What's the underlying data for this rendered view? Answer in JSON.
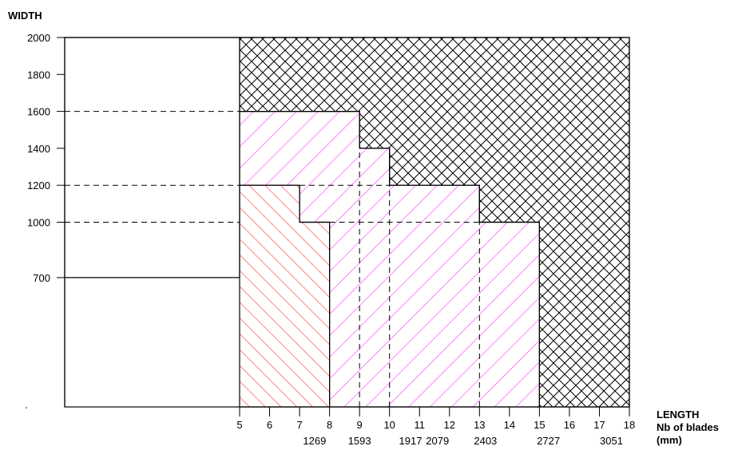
{
  "chart_data": {
    "type": "area",
    "ylabel": "WIDTH",
    "xlabel_lines": [
      "LENGTH",
      "Nb of blades",
      "(mm)"
    ],
    "x_range": [
      5,
      18
    ],
    "y_range": [
      0,
      2000
    ],
    "y_ticks": [
      "2000",
      "1800",
      "1600",
      "1400",
      "1200",
      "1000",
      "700"
    ],
    "y_tick_values": [
      2000,
      1800,
      1600,
      1400,
      1200,
      1000,
      700
    ],
    "x_ticks": [
      "5",
      "6",
      "7",
      "8",
      "9",
      "10",
      "11",
      "12",
      "13",
      "14",
      "15",
      "16",
      "17",
      "18"
    ],
    "x_tick_values": [
      5,
      6,
      7,
      8,
      9,
      10,
      11,
      12,
      13,
      14,
      15,
      16,
      17,
      18
    ],
    "mm_ticks": [
      {
        "label": "1269",
        "at": 7.5
      },
      {
        "label": "1593",
        "at": 9.0
      },
      {
        "label": "1917",
        "at": 10.7
      },
      {
        "label": "2079",
        "at": 11.6
      },
      {
        "label": "2403",
        "at": 13.2
      },
      {
        "label": "2727",
        "at": 15.3
      },
      {
        "label": "3051",
        "at": 17.4
      }
    ],
    "regions": [
      {
        "pattern": "blank",
        "outline": [
          [
            0,
            0
          ],
          [
            0,
            2000
          ],
          [
            5,
            2000
          ],
          [
            5,
            700
          ],
          [
            0,
            700
          ]
        ]
      },
      {
        "pattern": "cross-hatch",
        "color": "#000000",
        "outline": [
          [
            5,
            2000
          ],
          [
            18,
            2000
          ],
          [
            18,
            0
          ],
          [
            15,
            0
          ],
          [
            15,
            1000
          ],
          [
            13,
            1000
          ],
          [
            13,
            1200
          ],
          [
            10,
            1200
          ],
          [
            10,
            1400
          ],
          [
            9,
            1400
          ],
          [
            9,
            1600
          ],
          [
            5,
            1600
          ]
        ]
      },
      {
        "pattern": "diagonal-down",
        "color": "#ff33ff",
        "outline": [
          [
            5,
            1600
          ],
          [
            9,
            1600
          ],
          [
            9,
            1400
          ],
          [
            10,
            1400
          ],
          [
            10,
            1200
          ],
          [
            13,
            1200
          ],
          [
            13,
            1000
          ],
          [
            15,
            1000
          ],
          [
            15,
            0
          ],
          [
            8,
            0
          ],
          [
            8,
            1000
          ],
          [
            7,
            1000
          ],
          [
            7,
            1200
          ],
          [
            5,
            1200
          ]
        ]
      },
      {
        "pattern": "diagonal-up",
        "color": "#ff3333",
        "outline": [
          [
            5,
            1200
          ],
          [
            7,
            1200
          ],
          [
            7,
            1000
          ],
          [
            8,
            1000
          ],
          [
            8,
            0
          ],
          [
            5,
            0
          ]
        ]
      }
    ],
    "guides_dashed": [
      {
        "from": [
          0,
          1600
        ],
        "to": [
          5,
          1600
        ]
      },
      {
        "from": [
          0,
          1200
        ],
        "to": [
          5,
          1200
        ]
      },
      {
        "from": [
          0,
          1000
        ],
        "to": [
          5,
          1000
        ]
      },
      {
        "from": [
          9,
          0
        ],
        "to": [
          9,
          1400
        ]
      },
      {
        "from": [
          10,
          0
        ],
        "to": [
          10,
          1200
        ]
      },
      {
        "from": [
          13,
          0
        ],
        "to": [
          13,
          1000
        ]
      },
      {
        "from": [
          8,
          1000
        ],
        "to": [
          13,
          1000
        ]
      },
      {
        "from": [
          7,
          1200
        ],
        "to": [
          10,
          1200
        ]
      }
    ],
    "guides_solid": [
      {
        "from": [
          0,
          700
        ],
        "to": [
          5,
          700
        ]
      }
    ]
  }
}
